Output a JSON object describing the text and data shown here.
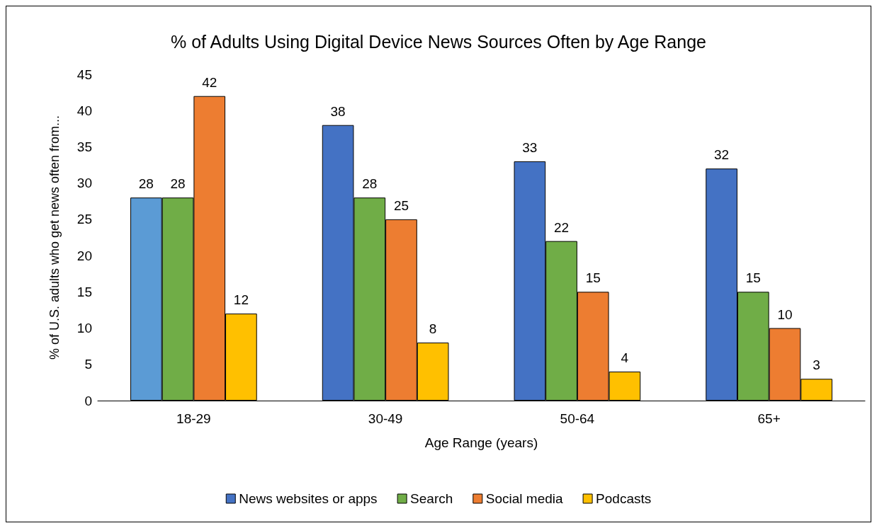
{
  "chart_data": {
    "type": "bar",
    "title": "% of Adults Using Digital Device News Sources Often by Age Range",
    "xlabel": "Age Range (years)",
    "ylabel": "% of U.S. adults who get news often from...",
    "categories": [
      "18-29",
      "30-49",
      "50-64",
      "65+"
    ],
    "series": [
      {
        "name": "News websites or apps",
        "color": "#4472c4",
        "colors": [
          "#5b9bd5",
          "#4472c4",
          "#4472c4",
          "#4472c4"
        ],
        "values": [
          28,
          38,
          33,
          32
        ]
      },
      {
        "name": "Search",
        "color": "#70ad47",
        "values": [
          28,
          28,
          22,
          15
        ]
      },
      {
        "name": "Social media",
        "color": "#ed7d31",
        "values": [
          42,
          25,
          15,
          10
        ]
      },
      {
        "name": "Podcasts",
        "color": "#ffc000",
        "values": [
          12,
          8,
          4,
          3
        ]
      }
    ],
    "ylim": [
      0,
      45
    ],
    "yticks": [
      0,
      5,
      10,
      15,
      20,
      25,
      30,
      35,
      40,
      45
    ],
    "grid": false,
    "legend": "bottom",
    "data_labels": true
  }
}
